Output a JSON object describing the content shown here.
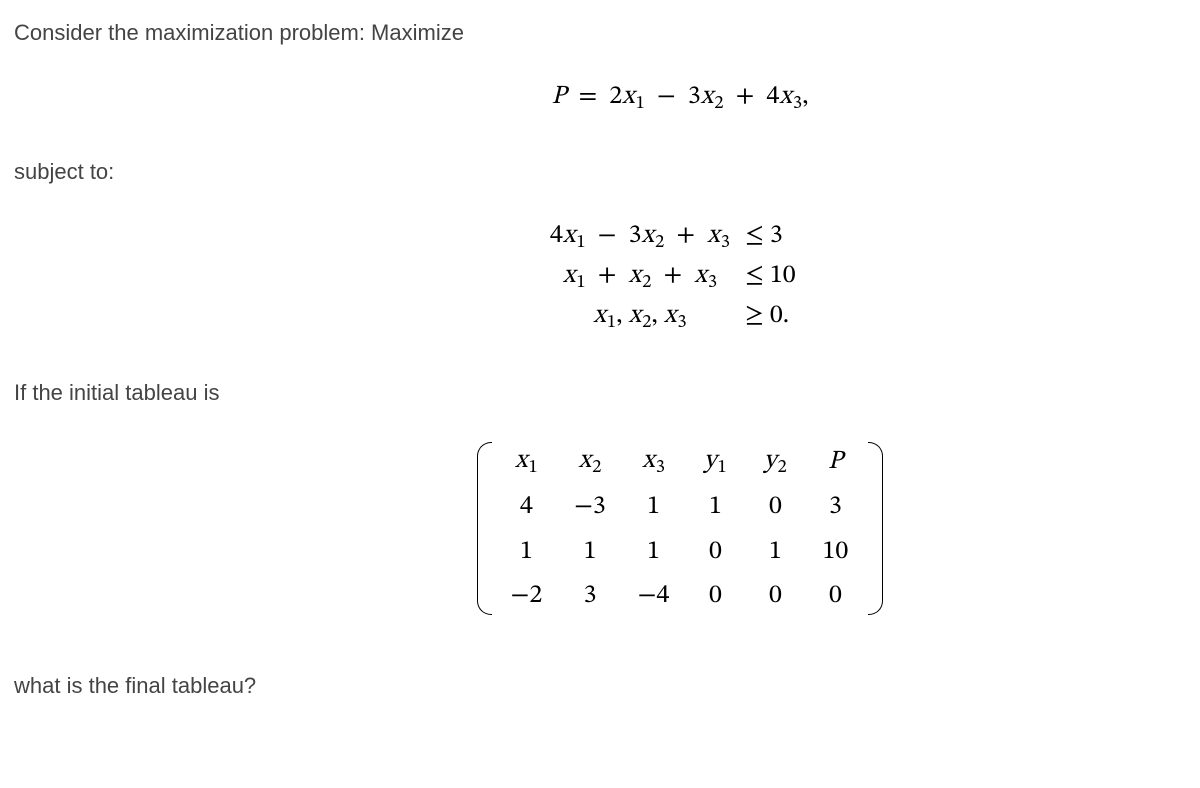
{
  "intro": "Consider the maximization problem: Maximize",
  "objective": {
    "lhs": "P",
    "eq": "=",
    "terms": [
      {
        "coef": "2",
        "var": "x",
        "sub": "1"
      },
      {
        "op": "−",
        "coef": "3",
        "var": "x",
        "sub": "2"
      },
      {
        "op": "+",
        "coef": "4",
        "var": "x",
        "sub": "3"
      }
    ],
    "tail": ","
  },
  "subject_label": "subject to:",
  "constraints": [
    {
      "lhs": [
        {
          "coef": "4",
          "var": "x",
          "sub": "1"
        },
        {
          "op": "−",
          "coef": "3",
          "var": "x",
          "sub": "2"
        },
        {
          "op": "+",
          "coef": "",
          "var": "x",
          "sub": "3"
        }
      ],
      "rel": "≤",
      "rhs": "3"
    },
    {
      "lhs": [
        {
          "coef": "",
          "var": "x",
          "sub": "1"
        },
        {
          "op": "+",
          "coef": "",
          "var": "x",
          "sub": "2"
        },
        {
          "op": "+",
          "coef": "",
          "var": "x",
          "sub": "3"
        }
      ],
      "rel": "≤",
      "rhs": "10"
    },
    {
      "lhs_text": [
        {
          "var": "x",
          "sub": "1"
        },
        {
          "sep": ", ",
          "var": "x",
          "sub": "2"
        },
        {
          "sep": ", ",
          "var": "x",
          "sub": "3"
        }
      ],
      "rel": "≥",
      "rhs": "0."
    }
  ],
  "tableau_label": "If the initial tableau is",
  "tableau": {
    "headers": [
      {
        "var": "x",
        "sub": "1"
      },
      {
        "var": "x",
        "sub": "2"
      },
      {
        "var": "x",
        "sub": "3"
      },
      {
        "var": "y",
        "sub": "1"
      },
      {
        "var": "y",
        "sub": "2"
      },
      {
        "var": "P",
        "sub": ""
      }
    ],
    "rows": [
      [
        "4",
        "−3",
        "1",
        "1",
        "0",
        "3"
      ],
      [
        "1",
        "1",
        "1",
        "0",
        "1",
        "10"
      ],
      [
        "−2",
        "3",
        "−4",
        "0",
        "0",
        "0"
      ]
    ]
  },
  "closing": "what is the final tableau?"
}
